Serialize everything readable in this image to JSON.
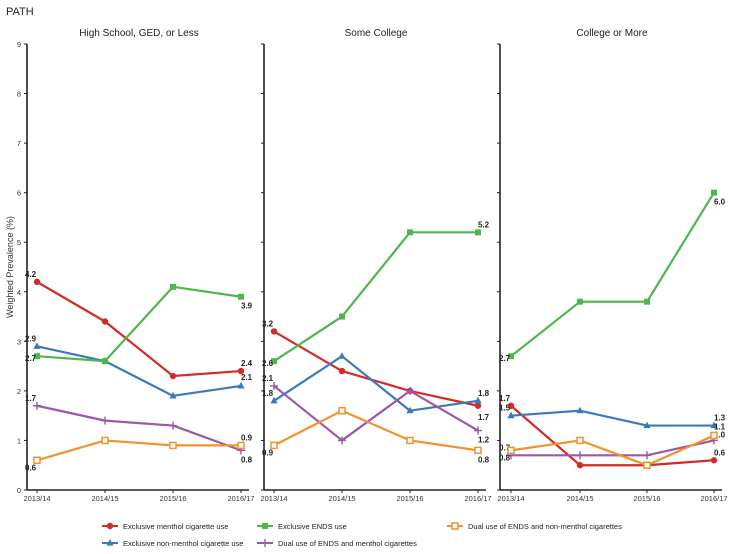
{
  "figure": {
    "label": "PATH",
    "ylabel": "Weighted Prevalence (%)"
  },
  "chart_data": {
    "type": "line",
    "title": "PATH",
    "ylabel": "Weighted Prevalence (%)",
    "ylim": [
      0,
      9
    ],
    "yticks": [
      "0",
      "1",
      "2",
      "3",
      "4",
      "5",
      "6",
      "7",
      "8",
      "9"
    ],
    "x": [
      "2013/14",
      "2014/15",
      "2015/16",
      "2016/17"
    ],
    "legend": "bottom",
    "panels": [
      {
        "title": "High School, GED, or Less",
        "series": [
          {
            "name": "Exclusive menthol cigarette use",
            "values": [
              4.2,
              3.4,
              2.3,
              2.4
            ],
            "labels": [
              "4.2",
              "",
              "",
              "2.4"
            ]
          },
          {
            "name": "Exclusive non-menthol cigarette use",
            "values": [
              2.9,
              2.6,
              1.9,
              2.1
            ],
            "labels": [
              "2.9",
              "",
              "",
              "2.1"
            ]
          },
          {
            "name": "Exclusive ENDS use",
            "values": [
              2.7,
              2.6,
              4.1,
              3.9
            ],
            "labels": [
              "2.7",
              "",
              "",
              "3.9"
            ]
          },
          {
            "name": "Dual use of ENDS and menthol cigarettes",
            "values": [
              1.7,
              1.4,
              1.3,
              0.8
            ],
            "labels": [
              "1.7",
              "",
              "",
              "0.8"
            ]
          },
          {
            "name": "Dual use of ENDS and non-menthol cigarettes",
            "values": [
              0.6,
              1.0,
              0.9,
              0.9
            ],
            "labels": [
              "0.6",
              "",
              "",
              "0.9"
            ]
          }
        ]
      },
      {
        "title": "Some College",
        "series": [
          {
            "name": "Exclusive menthol cigarette use",
            "values": [
              3.2,
              2.4,
              2.0,
              1.7
            ],
            "labels": [
              "3.2",
              "",
              "",
              "1.7"
            ]
          },
          {
            "name": "Exclusive non-menthol cigarette use",
            "values": [
              1.8,
              2.7,
              1.6,
              1.8
            ],
            "labels": [
              "1.8",
              "",
              "",
              "1.8"
            ]
          },
          {
            "name": "Exclusive ENDS use",
            "values": [
              2.6,
              3.5,
              5.2,
              5.2
            ],
            "labels": [
              "2.6",
              "",
              "",
              "5.2"
            ]
          },
          {
            "name": "Dual use of ENDS and menthol cigarettes",
            "values": [
              2.1,
              1.0,
              2.0,
              1.2
            ],
            "labels": [
              "2.1",
              "",
              "",
              "1.2"
            ]
          },
          {
            "name": "Dual use of ENDS and non-menthol cigarettes",
            "values": [
              0.9,
              1.6,
              1.0,
              0.8
            ],
            "labels": [
              "0.9",
              "",
              "",
              "0.8"
            ]
          }
        ]
      },
      {
        "title": "College or More",
        "series": [
          {
            "name": "Exclusive menthol cigarette use",
            "values": [
              1.7,
              0.5,
              0.5,
              0.6
            ],
            "labels": [
              "1.7",
              "",
              "",
              "0.6"
            ]
          },
          {
            "name": "Exclusive non-menthol cigarette use",
            "values": [
              1.5,
              1.6,
              1.3,
              1.3
            ],
            "labels": [
              "1.5",
              "",
              "",
              "1.3"
            ]
          },
          {
            "name": "Exclusive ENDS use",
            "values": [
              2.7,
              3.8,
              3.8,
              6.0
            ],
            "labels": [
              "2.7",
              "",
              "",
              "6.0"
            ]
          },
          {
            "name": "Dual use of ENDS and menthol cigarettes",
            "values": [
              0.7,
              0.7,
              0.7,
              1.0
            ],
            "labels": [
              "0.7",
              "",
              "",
              "1.0"
            ]
          },
          {
            "name": "Dual use of ENDS and non-menthol cigarettes",
            "values": [
              0.8,
              1.0,
              0.5,
              1.1
            ],
            "labels": [
              "0.8",
              "",
              "",
              "1.1"
            ]
          }
        ]
      }
    ],
    "series_styles": [
      {
        "name": "Exclusive menthol cigarette use",
        "color": "#d42b28",
        "marker": "circle"
      },
      {
        "name": "Exclusive non-menthol cigarette use",
        "color": "#3a7ab8",
        "marker": "triangle"
      },
      {
        "name": "Exclusive ENDS use",
        "color": "#4cb84a",
        "marker": "square"
      },
      {
        "name": "Dual use of ENDS and menthol cigarettes",
        "color": "#9b57a8",
        "marker": "plus"
      },
      {
        "name": "Dual use of ENDS and non-menthol cigarettes",
        "color": "#f0922e",
        "marker": "hollow-square"
      }
    ]
  }
}
